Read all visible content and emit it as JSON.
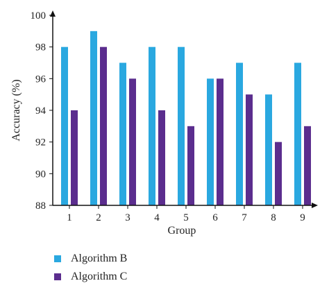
{
  "chart_data": {
    "type": "bar",
    "categories": [
      "1",
      "2",
      "3",
      "4",
      "5",
      "6",
      "7",
      "8",
      "9"
    ],
    "series": [
      {
        "name": "Algorithm B",
        "color": "#2aa8e0",
        "values": [
          98,
          99,
          97,
          98,
          98,
          96,
          97,
          95,
          97
        ]
      },
      {
        "name": "Algorithm C",
        "color": "#5b2d8e",
        "values": [
          94,
          98,
          96,
          94,
          93,
          96,
          95,
          92,
          93
        ]
      }
    ],
    "xlabel": "Group",
    "ylabel": "Accuracy (%)",
    "ylim": [
      88,
      100
    ],
    "yticks": [
      "88",
      "90",
      "92",
      "94",
      "96",
      "98",
      "100"
    ],
    "grid": false,
    "legend_position": "bottom-left"
  }
}
